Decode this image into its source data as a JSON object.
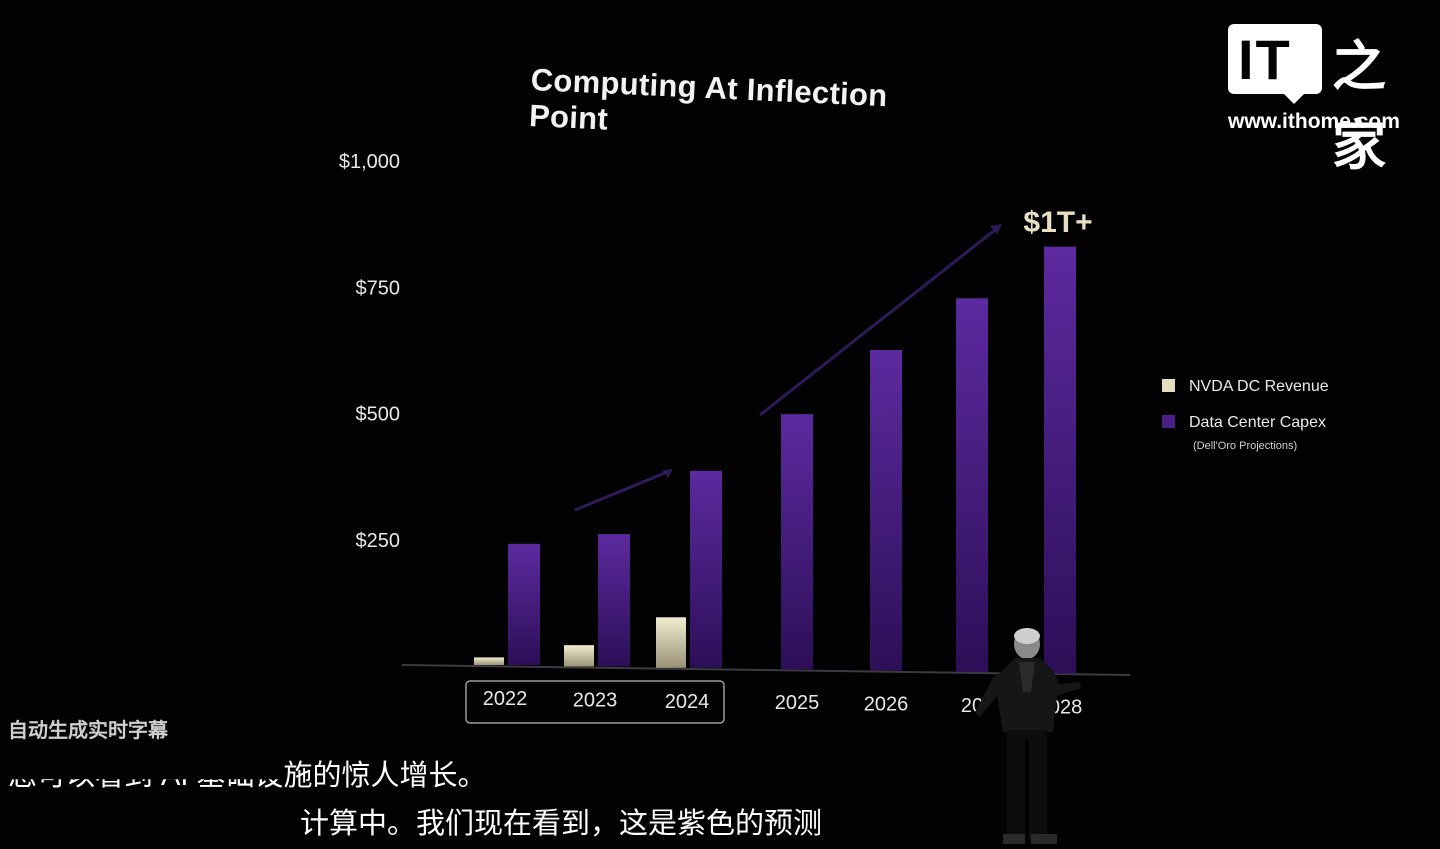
{
  "title": "Computing At Inflection Point",
  "watermark": {
    "brand": "IT之家",
    "url": "www.ithome.com"
  },
  "annotation": "$1T+",
  "legend": {
    "items": [
      {
        "label": "NVDA DC Revenue",
        "color": "#e3dcbd"
      },
      {
        "label": "Data Center Capex",
        "color": "#4a1e86"
      }
    ],
    "note": "(Dell'Oro Projections)"
  },
  "subtitles": {
    "label": "自动生成实时字幕",
    "line1_hidden": "您可以看到 AI 基础设",
    "line1_visible": "施的惊人增长。",
    "line2": "计算中。我们现在看到，这是紫色的预测"
  },
  "colors": {
    "background": "#020203",
    "capex_top": "#5c2a9f",
    "capex_bottom": "#2c0f57",
    "revenue_top": "#f1ecd0",
    "revenue_bottom": "#9a9377",
    "axis": "#3a3a40",
    "arrow": "#2f1a59"
  },
  "chart_data": {
    "type": "bar",
    "title": "Computing At Inflection Point",
    "xlabel": "",
    "ylabel": "",
    "ylim": [
      0,
      1000
    ],
    "y_ticks": [
      250,
      500,
      750,
      1000
    ],
    "y_tick_labels": [
      "$250",
      "$500",
      "$750",
      "$1,000"
    ],
    "categories": [
      "2022",
      "2023",
      "2024",
      "2025",
      "2026",
      "2027",
      "2028"
    ],
    "category_labels": [
      "2022",
      "2023",
      "2024",
      "2025",
      "2026",
      "20",
      "2028"
    ],
    "highlighted_categories": [
      "2022",
      "2023",
      "2024"
    ],
    "series": [
      {
        "name": "NVDA DC Revenue",
        "values": [
          15,
          42,
          100,
          null,
          null,
          null,
          null
        ]
      },
      {
        "name": "Data Center Capex",
        "values": [
          240,
          262,
          390,
          505,
          635,
          740,
          845
        ]
      }
    ],
    "legend_position": "right",
    "grid": false,
    "annotations": [
      {
        "text": "$1T+",
        "x": "2028",
        "y": 930
      }
    ]
  }
}
